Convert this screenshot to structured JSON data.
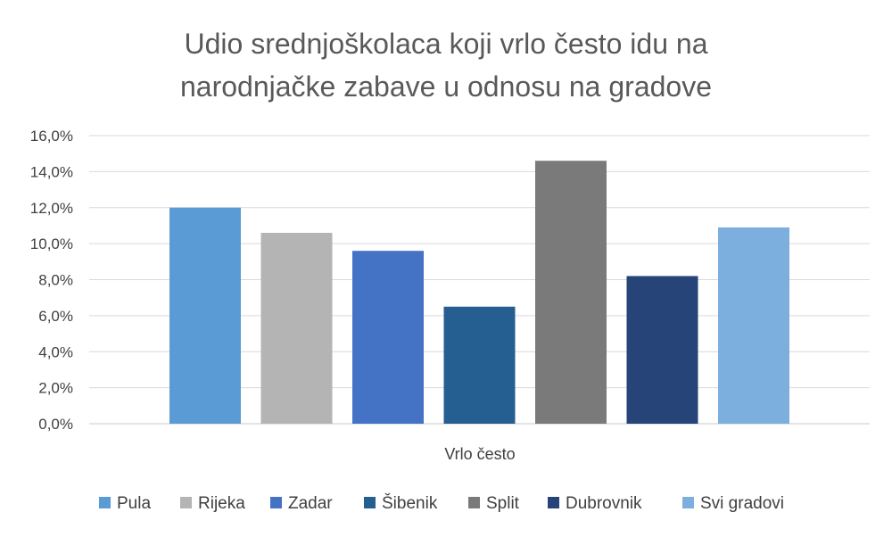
{
  "chart_data": {
    "type": "bar",
    "title": "Udio srednjoškolaca koji vrlo često idu na narodnjačke zabave u odnosu na gradove",
    "title_lines": [
      "Udio srednjoškolaca koji vrlo često idu na",
      "narodnjačke zabave u odnosu na gradove"
    ],
    "categories": [
      "Vrlo često"
    ],
    "xlabel": "",
    "ylabel": "",
    "ylim": [
      0,
      16
    ],
    "yticks": [
      0,
      2,
      4,
      6,
      8,
      10,
      12,
      14,
      16
    ],
    "ytick_labels": [
      "0,0%",
      "2,0%",
      "4,0%",
      "6,0%",
      "8,0%",
      "10,0%",
      "12,0%",
      "14,0%",
      "16,0%"
    ],
    "grid": true,
    "legend_position": "bottom",
    "series": [
      {
        "name": "Pula",
        "values": [
          12.0
        ],
        "color": "#5b9bd5"
      },
      {
        "name": "Rijeka",
        "values": [
          10.6
        ],
        "color": "#b4b4b4"
      },
      {
        "name": "Zadar",
        "values": [
          9.6
        ],
        "color": "#4472c4"
      },
      {
        "name": "Šibenik",
        "values": [
          6.5
        ],
        "color": "#255e91"
      },
      {
        "name": "Split",
        "values": [
          14.6
        ],
        "color": "#7a7a7a"
      },
      {
        "name": "Dubrovnik",
        "values": [
          8.2
        ],
        "color": "#264478"
      },
      {
        "name": "Svi gradovi",
        "values": [
          10.9
        ],
        "color": "#7cafdd"
      }
    ]
  }
}
